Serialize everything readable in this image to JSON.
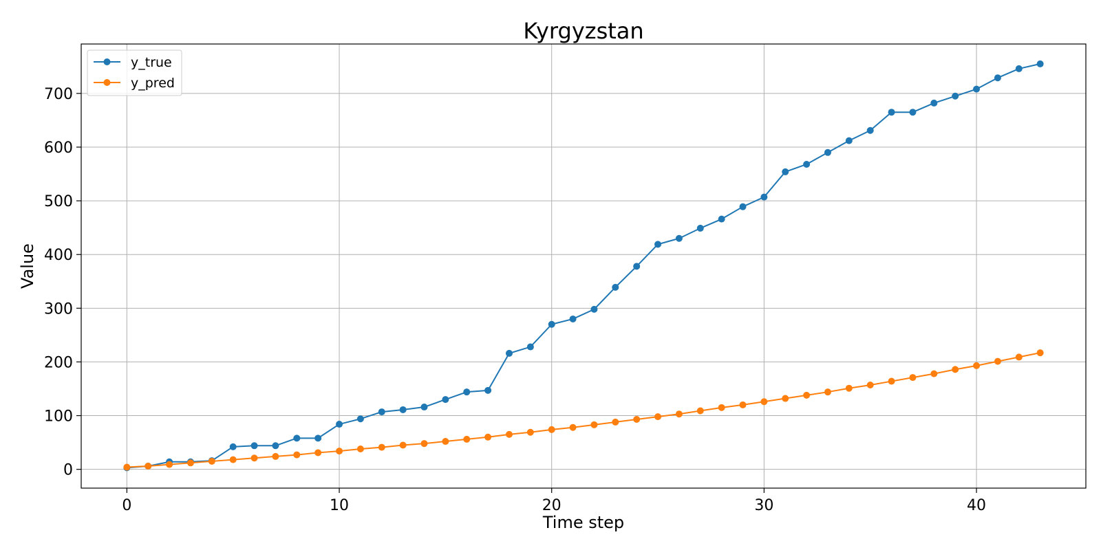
{
  "chart_data": {
    "type": "line",
    "title": "Kyrgyzstan",
    "xlabel": "Time step",
    "ylabel": "Value",
    "xlim": [
      -2.15,
      45.15
    ],
    "ylim": [
      -35,
      792
    ],
    "xticks": [
      0,
      10,
      20,
      30,
      40
    ],
    "yticks": [
      0,
      100,
      200,
      300,
      400,
      500,
      600,
      700
    ],
    "grid": true,
    "legend_position": "top-left",
    "x": [
      0,
      1,
      2,
      3,
      4,
      5,
      6,
      7,
      8,
      9,
      10,
      11,
      12,
      13,
      14,
      15,
      16,
      17,
      18,
      19,
      20,
      21,
      22,
      23,
      24,
      25,
      26,
      27,
      28,
      29,
      30,
      31,
      32,
      33,
      34,
      35,
      36,
      37,
      38,
      39,
      40,
      41,
      42,
      43
    ],
    "series": [
      {
        "name": "y_true",
        "color": "#1f77b4",
        "values": [
          3,
          6,
          14,
          14,
          16,
          42,
          44,
          44,
          58,
          58,
          84,
          94,
          107,
          111,
          116,
          130,
          144,
          147,
          216,
          228,
          270,
          280,
          298,
          339,
          378,
          419,
          430,
          449,
          466,
          489,
          507,
          554,
          568,
          590,
          612,
          631,
          665,
          665,
          682,
          695,
          708,
          729,
          746,
          755
        ]
      },
      {
        "name": "y_pred",
        "color": "#ff7f0e",
        "values": [
          4,
          6,
          9,
          12,
          15,
          18,
          21,
          24,
          27,
          31,
          34,
          38,
          41,
          45,
          48,
          52,
          56,
          60,
          65,
          69,
          74,
          78,
          83,
          88,
          93,
          98,
          103,
          109,
          115,
          120,
          126,
          132,
          138,
          144,
          151,
          157,
          164,
          171,
          178,
          186,
          193,
          201,
          209,
          217
        ]
      }
    ]
  }
}
